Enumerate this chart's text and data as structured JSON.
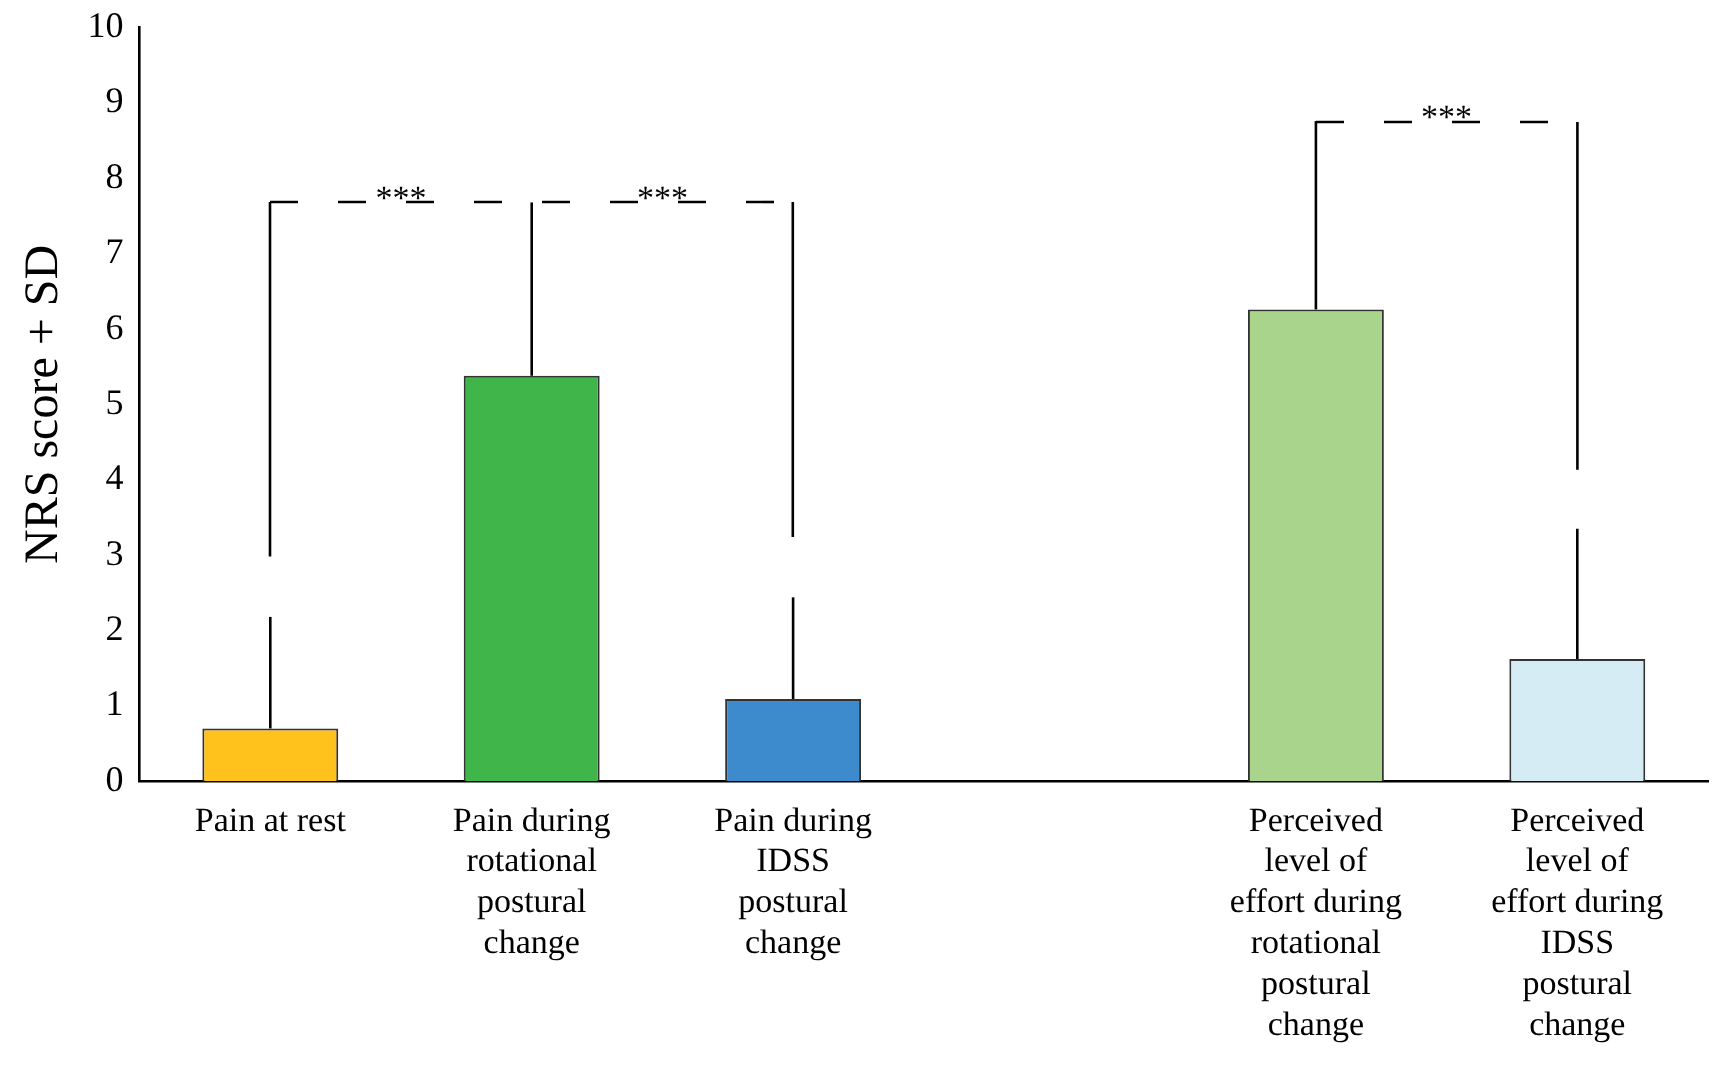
{
  "chart_data": {
    "type": "bar",
    "ylabel": "NRS score + SD",
    "categories": [
      "Pain at rest",
      "Pain during\nrotational\npostural\nchange",
      "Pain during\nIDSS\npostural\nchange",
      null,
      "Perceived\nlevel of\neffort during\nrotational\npostural\nchange",
      "Perceived\nlevel of\neffort during\nIDSS\npostural\nchange"
    ],
    "values": [
      0.7,
      5.38,
      1.09,
      null,
      6.26,
      1.62
    ],
    "errors": [
      [
        0.7,
        2.18
      ],
      [
        5.38,
        7.68
      ],
      [
        1.09,
        2.44
      ],
      null,
      [
        6.26,
        8.76
      ],
      [
        1.62,
        3.35
      ]
    ],
    "colors": [
      "#ffc21c",
      "#3fb54a",
      "#3d8bcd",
      "#ffffff",
      "#a9d48b",
      "#d6ecf4"
    ],
    "ylim": [
      0,
      10
    ],
    "yticks": [
      0,
      1,
      2,
      3,
      4,
      5,
      6,
      7,
      8,
      9,
      10
    ],
    "grid": false,
    "legend": false,
    "annotations": [
      "***",
      "***",
      "***"
    ]
  }
}
